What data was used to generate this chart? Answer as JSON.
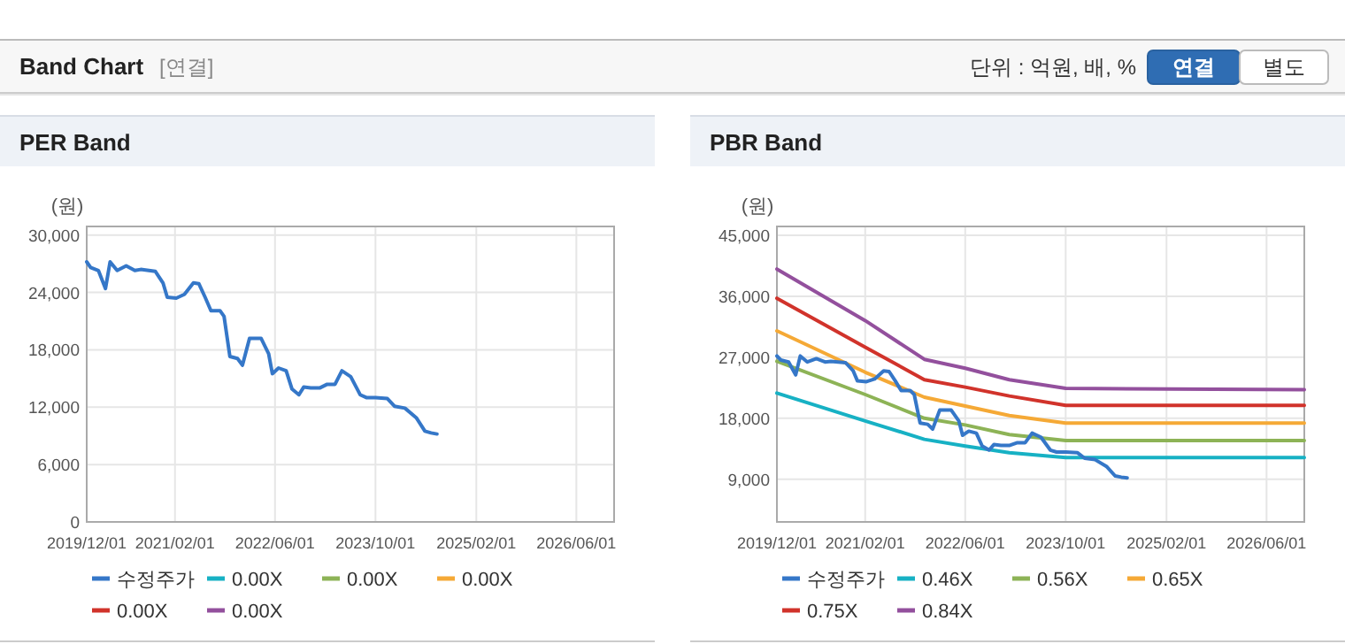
{
  "chart_data": [
    {
      "type": "line",
      "title": "PER Band",
      "ylabel": "(원)",
      "annotations": [
        "Band Chart",
        "[연결]",
        "단위 : 억원, 배, %",
        "연결",
        "별도"
      ],
      "x": [
        "2019-12-01",
        "2019-12-20",
        "2020-01-27",
        "2020-03-01",
        "2020-03-23",
        "2020-04-27",
        "2020-06-09",
        "2020-07-21",
        "2020-08-19",
        "2020-10-29",
        "2020-12-05",
        "2020-12-25",
        "2021-02-07",
        "2021-03-19",
        "2021-05-01",
        "2021-05-28",
        "2021-06-27",
        "2021-07-25",
        "2021-09-07",
        "2021-09-27",
        "2021-10-25",
        "2021-12-01",
        "2021-12-25",
        "2022-01-28",
        "2022-03-25",
        "2022-05-01",
        "2022-05-19",
        "2022-06-18",
        "2022-07-25",
        "2022-08-22",
        "2022-09-25",
        "2022-10-18",
        "2022-11-21",
        "2023-01-03",
        "2023-02-09",
        "2023-03-19",
        "2023-04-21",
        "2023-06-03",
        "2023-07-19",
        "2023-08-18",
        "2023-10-01",
        "2023-11-28",
        "2024-01-01",
        "2024-02-21",
        "2024-04-16",
        "2024-05-28",
        "2024-06-27",
        "2024-07-25"
      ],
      "series": [
        {
          "name": "수정주가",
          "color": "#3577c8",
          "values": [
            27200,
            26600,
            26300,
            24400,
            27200,
            26300,
            26800,
            26300,
            26400,
            26200,
            25000,
            23500,
            23400,
            23800,
            25000,
            24900,
            23500,
            22100,
            22100,
            21500,
            17300,
            17100,
            16400,
            19200,
            19200,
            17600,
            15500,
            16100,
            15800,
            13900,
            13300,
            14100,
            14000,
            14000,
            14400,
            14400,
            15800,
            15200,
            13300,
            13000,
            13000,
            12900,
            12100,
            11900,
            10900,
            9500,
            9300,
            9200
          ]
        },
        {
          "name": "0.00X",
          "color": "#17b1c4",
          "values": [
            null,
            null,
            null,
            null,
            null,
            null,
            null,
            null,
            null,
            null,
            null,
            null,
            null,
            null,
            null,
            null,
            null,
            null,
            null,
            null,
            null,
            null,
            null,
            null,
            null,
            null,
            null,
            null,
            null,
            null,
            null,
            null,
            null,
            null,
            null,
            null,
            null,
            null,
            null,
            null,
            null,
            null,
            null,
            null,
            null,
            null,
            null,
            null
          ]
        },
        {
          "name": "0.00X",
          "color": "#8db356",
          "values": [
            null,
            null,
            null,
            null,
            null,
            null,
            null,
            null,
            null,
            null,
            null,
            null,
            null,
            null,
            null,
            null,
            null,
            null,
            null,
            null,
            null,
            null,
            null,
            null,
            null,
            null,
            null,
            null,
            null,
            null,
            null,
            null,
            null,
            null,
            null,
            null,
            null,
            null,
            null,
            null,
            null,
            null,
            null,
            null,
            null,
            null,
            null,
            null
          ]
        },
        {
          "name": "0.00X",
          "color": "#f5a936",
          "values": [
            null,
            null,
            null,
            null,
            null,
            null,
            null,
            null,
            null,
            null,
            null,
            null,
            null,
            null,
            null,
            null,
            null,
            null,
            null,
            null,
            null,
            null,
            null,
            null,
            null,
            null,
            null,
            null,
            null,
            null,
            null,
            null,
            null,
            null,
            null,
            null,
            null,
            null,
            null,
            null,
            null,
            null,
            null,
            null,
            null,
            null,
            null,
            null
          ]
        },
        {
          "name": "0.00X",
          "color": "#d1332b",
          "values": [
            null,
            null,
            null,
            null,
            null,
            null,
            null,
            null,
            null,
            null,
            null,
            null,
            null,
            null,
            null,
            null,
            null,
            null,
            null,
            null,
            null,
            null,
            null,
            null,
            null,
            null,
            null,
            null,
            null,
            null,
            null,
            null,
            null,
            null,
            null,
            null,
            null,
            null,
            null,
            null,
            null,
            null,
            null,
            null,
            null,
            null,
            null,
            null
          ]
        },
        {
          "name": "0.00X",
          "color": "#93509d",
          "values": [
            null,
            null,
            null,
            null,
            null,
            null,
            null,
            null,
            null,
            null,
            null,
            null,
            null,
            null,
            null,
            null,
            null,
            null,
            null,
            null,
            null,
            null,
            null,
            null,
            null,
            null,
            null,
            null,
            null,
            null,
            null,
            null,
            null,
            null,
            null,
            null,
            null,
            null,
            null,
            null,
            null,
            null,
            null,
            null,
            null,
            null,
            null,
            null
          ]
        }
      ],
      "xlim": [
        "2019-12-01",
        "2026-12-01"
      ],
      "xticks": [
        {
          "value": "2019-12-01",
          "label": "2019/12/01"
        },
        {
          "value": "2021-02-01",
          "label": "2021/02/01"
        },
        {
          "value": "2022-06-01",
          "label": "2022/06/01"
        },
        {
          "value": "2023-10-01",
          "label": "2023/10/01"
        },
        {
          "value": "2025-02-01",
          "label": "2025/02/01"
        },
        {
          "value": "2026-06-01",
          "label": "2026/06/01"
        }
      ],
      "ylim": [
        0,
        30900
      ],
      "yticks": [
        0,
        {
          "value": 6000,
          "label": "6,000"
        },
        {
          "value": 12000,
          "label": "12,000"
        },
        {
          "value": 18000,
          "label": "18,000"
        },
        {
          "value": 24000,
          "label": "24,000"
        },
        {
          "value": 30000,
          "label": "30,000"
        }
      ],
      "grid": true,
      "legend": "bottom"
    },
    {
      "type": "line",
      "title": "PBR Band",
      "ylabel": "(원)",
      "x": [
        "2019-12-01",
        "2019-12-20",
        "2020-01-27",
        "2020-03-01",
        "2020-03-23",
        "2020-04-27",
        "2020-06-09",
        "2020-07-21",
        "2020-08-19",
        "2020-10-29",
        "2020-12-05",
        "2020-12-25",
        "2021-02-07",
        "2021-03-19",
        "2021-05-01",
        "2021-05-28",
        "2021-06-27",
        "2021-07-25",
        "2021-09-07",
        "2021-09-27",
        "2021-10-25",
        "2021-12-01",
        "2021-12-25",
        "2022-01-28",
        "2022-03-25",
        "2022-05-01",
        "2022-05-19",
        "2022-06-18",
        "2022-07-25",
        "2022-08-22",
        "2022-09-25",
        "2022-10-18",
        "2022-11-21",
        "2023-01-03",
        "2023-02-09",
        "2023-03-19",
        "2023-04-21",
        "2023-06-03",
        "2023-07-19",
        "2023-08-18",
        "2023-10-01",
        "2023-11-28",
        "2024-01-01",
        "2024-02-21",
        "2024-04-16",
        "2024-05-28",
        "2024-06-27",
        "2024-07-25"
      ],
      "series": [
        {
          "name": "수정주가",
          "color": "#3577c8",
          "values": [
            27200,
            26600,
            26300,
            24400,
            27200,
            26300,
            26800,
            26300,
            26400,
            26200,
            25000,
            23500,
            23400,
            23800,
            25000,
            24900,
            23500,
            22100,
            22100,
            21500,
            17300,
            17100,
            16400,
            19200,
            19200,
            17600,
            15500,
            16100,
            15800,
            13900,
            13300,
            14100,
            14000,
            14000,
            14400,
            14400,
            15800,
            15200,
            13300,
            13000,
            13000,
            12900,
            12100,
            11900,
            10900,
            9500,
            9300,
            9200
          ]
        },
        {
          "name": "0.46X",
          "color": "#17b1c4",
          "x": [
            "2019-12-01",
            "2021-02-01",
            "2021-11-15",
            "2022-06-01",
            "2023-01-01",
            "2023-10-01",
            "2026-12-01"
          ],
          "values": [
            21700,
            17600,
            14900,
            13900,
            12900,
            12200,
            12200
          ]
        },
        {
          "name": "0.56X",
          "color": "#8db356",
          "x": [
            "2019-12-01",
            "2021-02-01",
            "2021-11-15",
            "2022-06-01",
            "2023-01-01",
            "2023-10-01",
            "2026-12-01"
          ],
          "values": [
            26400,
            21500,
            18000,
            17000,
            15600,
            14700,
            14700
          ]
        },
        {
          "name": "0.65X",
          "color": "#f5a936",
          "x": [
            "2019-12-01",
            "2021-02-01",
            "2021-11-15",
            "2022-06-01",
            "2023-01-01",
            "2023-10-01",
            "2026-12-01"
          ],
          "values": [
            30900,
            24800,
            21100,
            19800,
            18400,
            17300,
            17300
          ]
        },
        {
          "name": "0.75X",
          "color": "#d1332b",
          "x": [
            "2019-12-01",
            "2021-02-01",
            "2021-11-15",
            "2022-06-01",
            "2023-01-01",
            "2023-10-01",
            "2026-12-01"
          ],
          "values": [
            35700,
            28500,
            23700,
            22600,
            21300,
            19900,
            19900
          ]
        },
        {
          "name": "0.84X",
          "color": "#93509d",
          "x": [
            "2019-12-01",
            "2021-02-01",
            "2021-11-15",
            "2022-06-01",
            "2023-01-01",
            "2023-10-01",
            "2026-12-01"
          ],
          "values": [
            40000,
            32400,
            26700,
            25400,
            23700,
            22400,
            22200
          ]
        }
      ],
      "xlim": [
        "2019-12-01",
        "2026-12-01"
      ],
      "xticks": [
        {
          "value": "2019-12-01",
          "label": "2019/12/01"
        },
        {
          "value": "2021-02-01",
          "label": "2021/02/01"
        },
        {
          "value": "2022-06-01",
          "label": "2022/06/01"
        },
        {
          "value": "2023-10-01",
          "label": "2023/10/01"
        },
        {
          "value": "2025-02-01",
          "label": "2025/02/01"
        },
        {
          "value": "2026-06-01",
          "label": "2026/06/01"
        }
      ],
      "ylim": [
        2700,
        46300
      ],
      "yticks": [
        {
          "value": 9000,
          "label": "9,000"
        },
        {
          "value": 18000,
          "label": "18,000"
        },
        {
          "value": 27000,
          "label": "27,000"
        },
        {
          "value": 36000,
          "label": "36,000"
        },
        {
          "value": 45000,
          "label": "45,000"
        }
      ],
      "grid": true,
      "legend": "bottom"
    }
  ]
}
